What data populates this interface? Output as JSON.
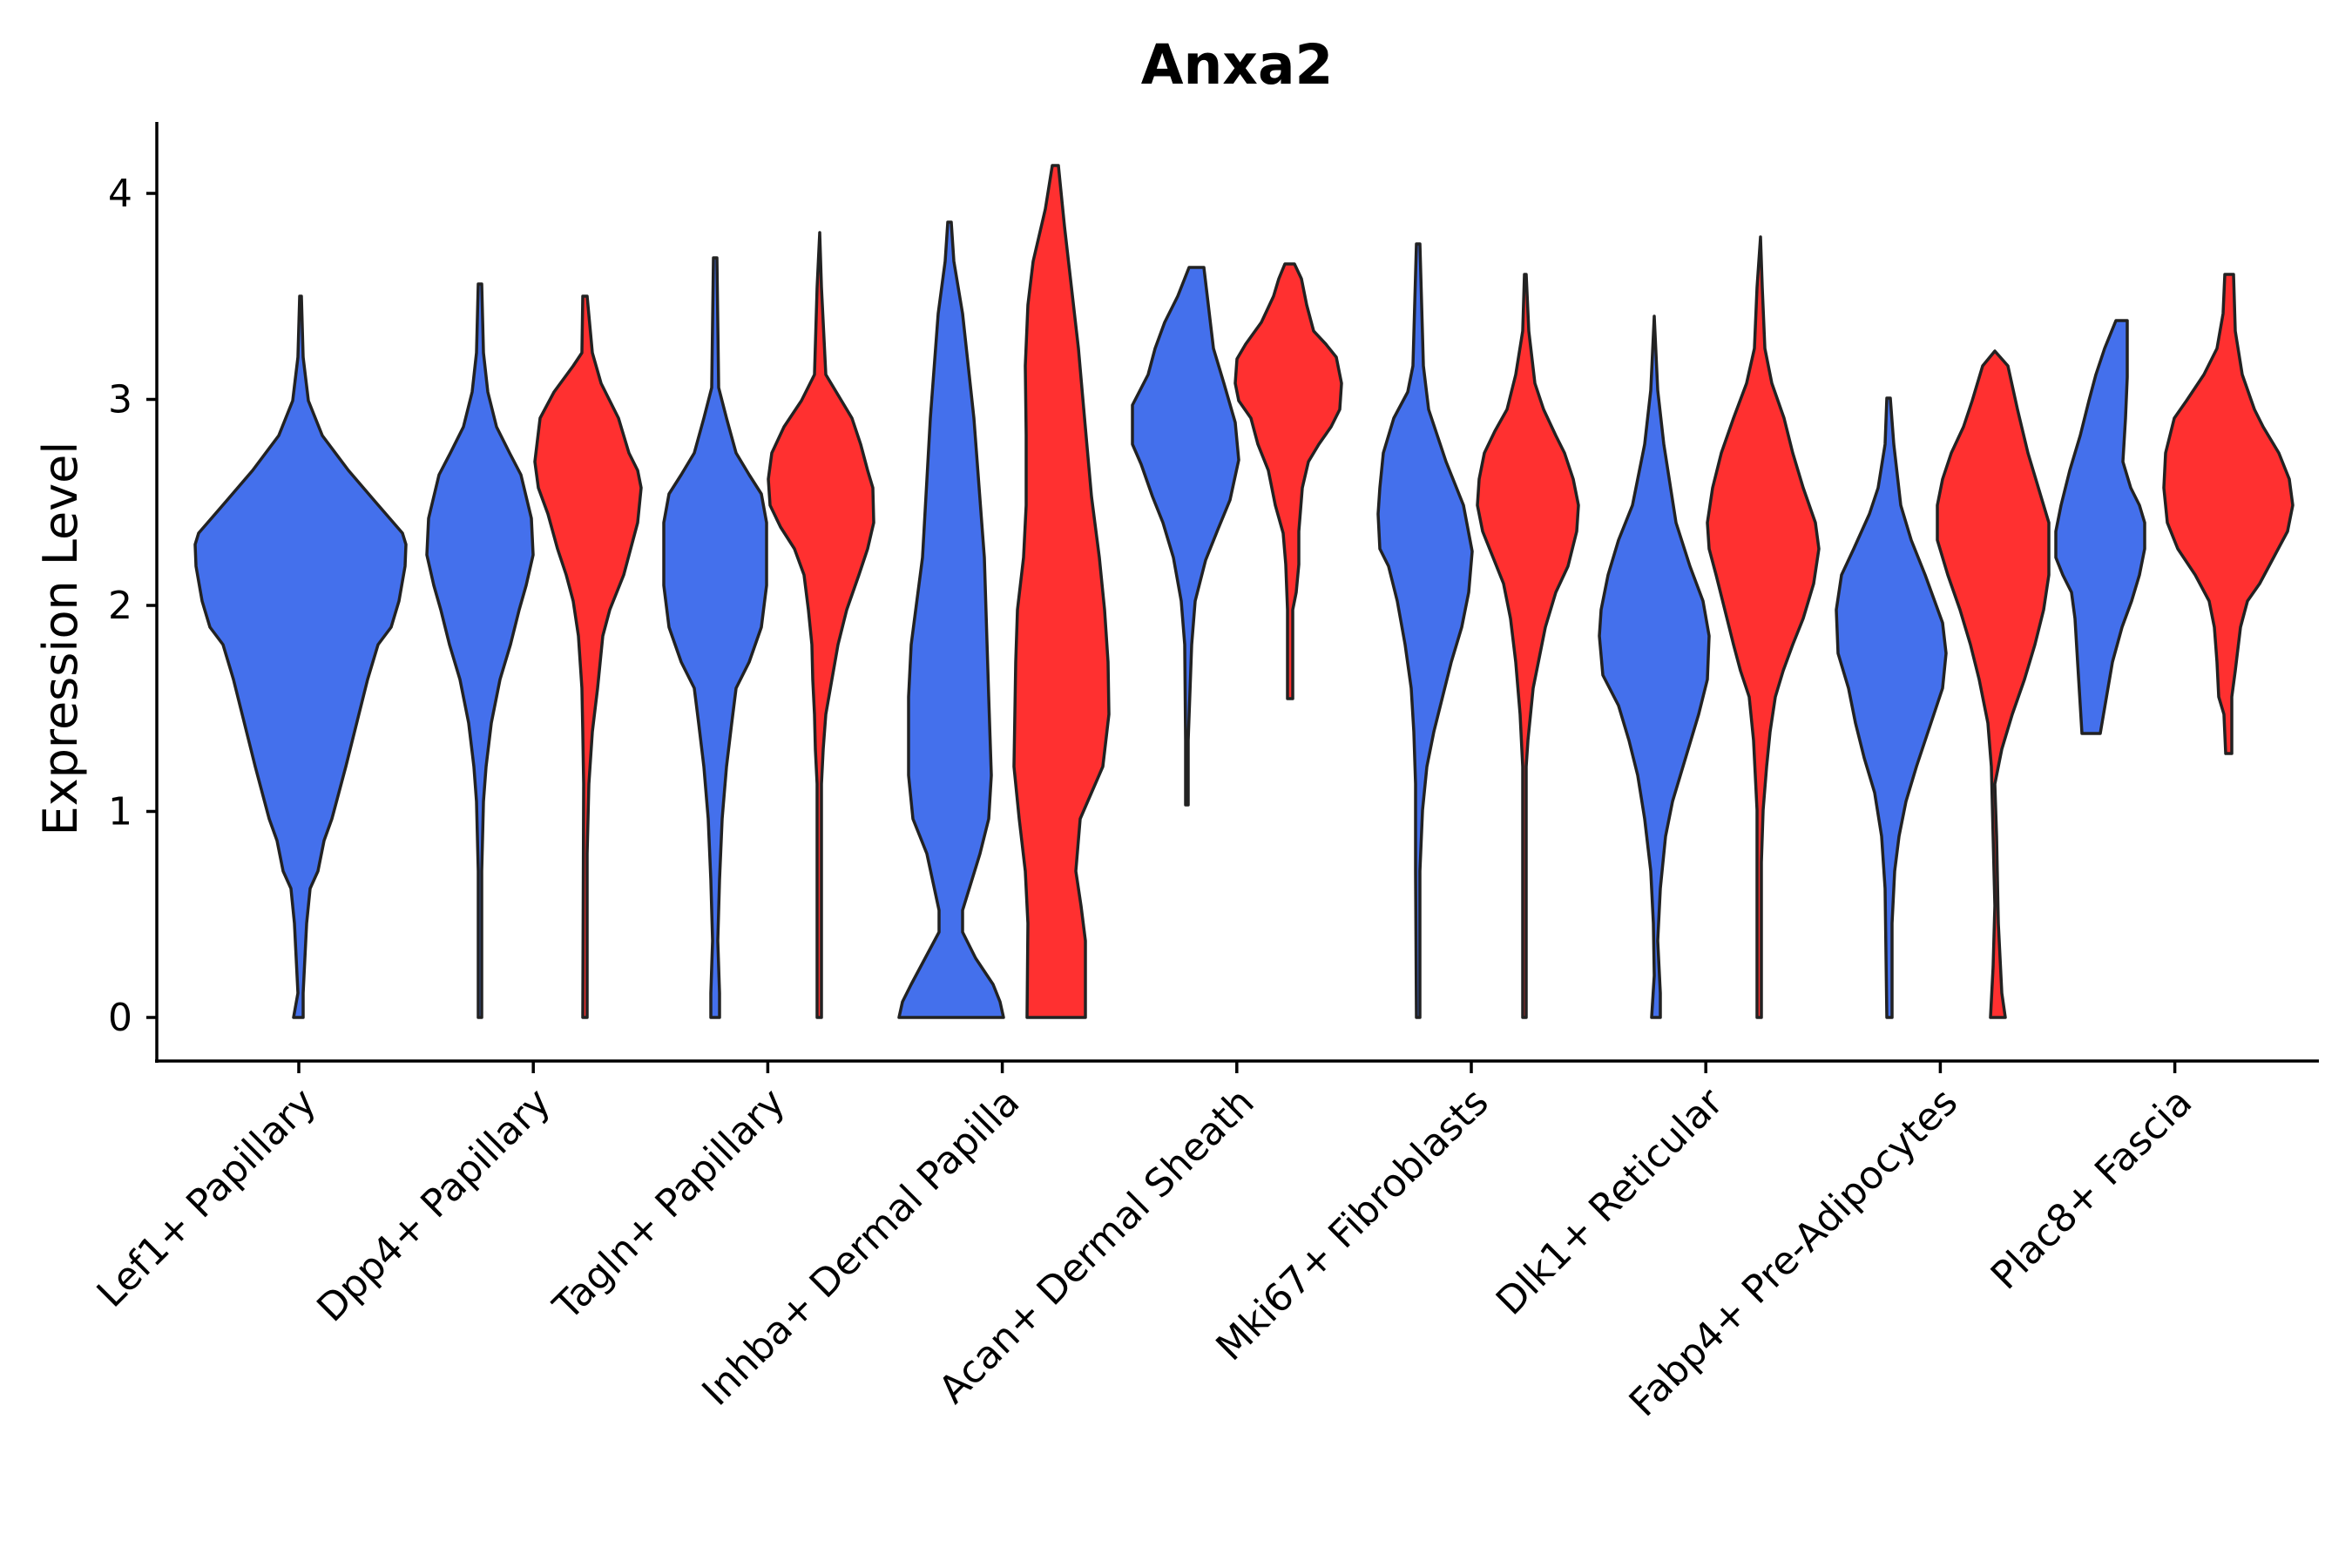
{
  "chart_data": {
    "type": "violin",
    "title": "Anxa2",
    "xlabel": "",
    "ylabel": "Expression Level",
    "ylim": [
      -0.2,
      4.35
    ],
    "yticks": [
      0,
      1,
      2,
      3,
      4
    ],
    "categories": [
      "Lef1+ Papillary",
      "Dpp4+ Papillary",
      "Tagln+ Papillary",
      "Inhba+ Dermal Papilla",
      "Acan+ Dermal Sheath",
      "Mki67+ Fibroblasts",
      "Dlk1+ Reticular",
      "Fabp4+ Pre-Adipocytes",
      "Plac8+ Fascia"
    ],
    "colors": {
      "blue": "#4470EC",
      "red": "#FF3030"
    },
    "series": [
      {
        "name": "blue",
        "color": "#4470EC",
        "violins": [
          {
            "category": "Lef1+ Papillary",
            "min": 0,
            "max": 3.5,
            "median": 2.2
          },
          {
            "category": "Dpp4+ Papillary",
            "min": 0,
            "max": 3.55,
            "median": 2.2
          },
          {
            "category": "Tagln+ Papillary",
            "min": 0,
            "max": 3.7,
            "median": 2.3
          },
          {
            "category": "Inhba+ Dermal Papilla",
            "min": 0,
            "max": 3.85,
            "median": 0.3
          },
          {
            "category": "Acan+ Dermal Sheath",
            "min": 1.03,
            "max": 3.65,
            "median": 2.8
          },
          {
            "category": "Mki67+ Fibroblasts",
            "min": 0,
            "max": 3.75,
            "median": 2.2
          },
          {
            "category": "Dlk1+ Reticular",
            "min": 0,
            "max": 3.4,
            "median": 1.8
          },
          {
            "category": "Fabp4+ Pre-Adipocytes",
            "min": 0,
            "max": 3.0,
            "median": 1.7
          },
          {
            "category": "Plac8+ Fascia",
            "min": 1.37,
            "max": 3.38,
            "median": 2.3
          }
        ]
      },
      {
        "name": "red",
        "color": "#FF3030",
        "violins": [
          {
            "category": "Dpp4+ Papillary",
            "min": 0,
            "max": 3.5,
            "median": 2.6
          },
          {
            "category": "Tagln+ Papillary",
            "min": 0,
            "max": 3.8,
            "median": 2.5
          },
          {
            "category": "Inhba+ Dermal Papilla",
            "min": 0,
            "max": 4.12,
            "median": 1.2
          },
          {
            "category": "Acan+ Dermal Sheath",
            "min": 1.55,
            "max": 3.65,
            "median": 3.0
          },
          {
            "category": "Mki67+ Fibroblasts",
            "min": 0,
            "max": 3.6,
            "median": 2.4
          },
          {
            "category": "Dlk1+ Reticular",
            "min": 0,
            "max": 3.78,
            "median": 2.3
          },
          {
            "category": "Fabp4+ Pre-Adipocytes",
            "min": 0,
            "max": 3.22,
            "median": 2.3
          },
          {
            "category": "Plac8+ Fascia",
            "min": 1.28,
            "max": 3.6,
            "median": 2.5
          }
        ]
      }
    ]
  }
}
